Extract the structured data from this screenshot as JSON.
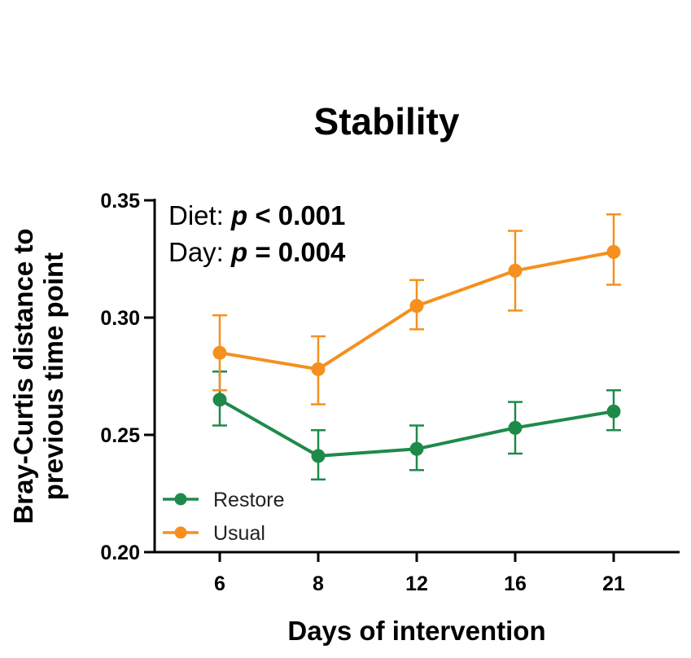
{
  "chart_data": {
    "type": "line",
    "title": "Stability",
    "xlabel": "Days of intervention",
    "ylabel_line1": "Bray-Curtis distance to",
    "ylabel_line2": "previous time point",
    "categories": [
      "6",
      "8",
      "12",
      "16",
      "21"
    ],
    "ylim": [
      0.2,
      0.35
    ],
    "yticks": [
      0.2,
      0.25,
      0.3,
      0.35
    ],
    "ytick_labels": [
      "0.20",
      "0.25",
      "0.30",
      "0.35"
    ],
    "series": [
      {
        "name": "Restore",
        "color": "#1e8a4a",
        "values": [
          0.265,
          0.241,
          0.244,
          0.253,
          0.26
        ],
        "error_low": [
          0.254,
          0.231,
          0.235,
          0.242,
          0.252
        ],
        "error_high": [
          0.277,
          0.252,
          0.254,
          0.264,
          0.269
        ]
      },
      {
        "name": "Usual",
        "color": "#f5901e",
        "values": [
          0.285,
          0.278,
          0.305,
          0.32,
          0.328
        ],
        "error_low": [
          0.269,
          0.263,
          0.295,
          0.303,
          0.314
        ],
        "error_high": [
          0.301,
          0.292,
          0.316,
          0.337,
          0.344
        ]
      }
    ],
    "annotations": [
      {
        "prefix": "Diet: ",
        "stat": "p",
        "rest": " < 0.001"
      },
      {
        "prefix": "Day: ",
        "stat": "p",
        "rest": " = 0.004"
      }
    ],
    "legend_position": "bottom-left"
  }
}
